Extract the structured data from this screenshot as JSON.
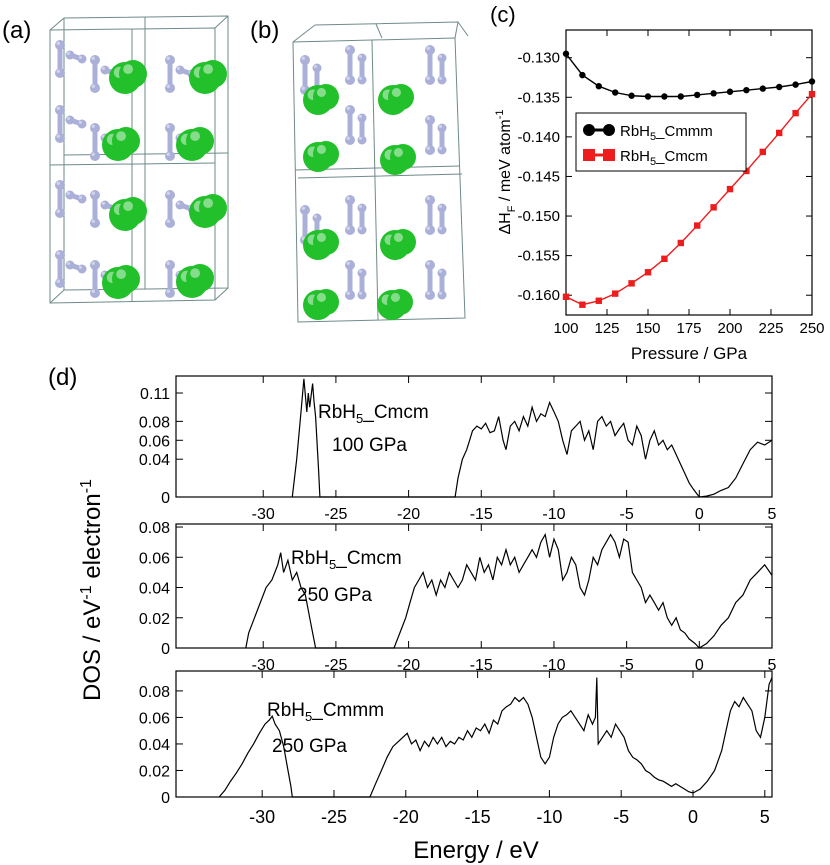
{
  "panel_labels": {
    "a": "(a)",
    "b": "(b)",
    "c": "(c)",
    "d": "(d)"
  },
  "colors": {
    "rb": "#22c02a",
    "h": "#aab0d8",
    "cell": "#6f8a8a",
    "black_series": "#000000",
    "red_series": "#ee1c1c"
  },
  "chart_data": [
    {
      "type": "line",
      "panel": "c",
      "xlabel": "Pressure / GPa",
      "ylabel": "ΔH_F / meV atom^-1",
      "ylabel_parts": {
        "delta": "ΔH",
        "sub": "F",
        "unit": " / meV atom",
        "sup": "-1"
      },
      "xlim": [
        100,
        250
      ],
      "ylim": [
        -0.1625,
        -0.1265
      ],
      "xticks": [
        100,
        125,
        150,
        175,
        200,
        225,
        250
      ],
      "yticks": [
        -0.16,
        -0.155,
        -0.15,
        -0.145,
        -0.14,
        -0.135,
        -0.13
      ],
      "ytick_labels": [
        "-0.160",
        "-0.155",
        "-0.150",
        "-0.145",
        "-0.140",
        "-0.135",
        "-0.130"
      ],
      "x": [
        100,
        110,
        120,
        130,
        140,
        150,
        160,
        170,
        180,
        190,
        200,
        210,
        220,
        230,
        240,
        250
      ],
      "legend_location": "upper-left",
      "series": [
        {
          "name": "RbH5_Cmmm",
          "name_parts": [
            "RbH",
            "5",
            "_Cmmm"
          ],
          "marker": "circle",
          "color": "#000000",
          "values": [
            -0.1295,
            -0.1322,
            -0.1336,
            -0.1344,
            -0.1348,
            -0.1349,
            -0.1349,
            -0.1349,
            -0.1347,
            -0.1345,
            -0.1343,
            -0.1341,
            -0.1339,
            -0.1337,
            -0.1334,
            -0.133
          ]
        },
        {
          "name": "RbH5_Cmcm",
          "name_parts": [
            "RbH",
            "5",
            "_Cmcm"
          ],
          "marker": "square",
          "color": "#ee1c1c",
          "values": [
            -0.1602,
            -0.1612,
            -0.1607,
            -0.1598,
            -0.1585,
            -0.1571,
            -0.1554,
            -0.1534,
            -0.1512,
            -0.1489,
            -0.1466,
            -0.1443,
            -0.1419,
            -0.1395,
            -0.137,
            -0.1346
          ]
        }
      ]
    },
    {
      "type": "line",
      "panel": "d-top",
      "title_parts": [
        "RbH",
        "5",
        "_Cmcm"
      ],
      "subtitle": "100 GPa",
      "xlim": [
        -36,
        5
      ],
      "ylim": [
        0,
        0.128
      ],
      "xticks": [
        -30,
        -25,
        -20,
        -15,
        -10,
        -5,
        0,
        5
      ],
      "yticks": [
        0,
        0.04,
        0.06,
        0.08,
        0.11
      ],
      "ytick_labels": [
        "0",
        "0.04",
        "0.06",
        "0.08",
        "0.11"
      ],
      "points": [
        [
          -28.0,
          0
        ],
        [
          -27.7,
          0.04
        ],
        [
          -27.4,
          0.09
        ],
        [
          -27.2,
          0.125
        ],
        [
          -27.0,
          0.09
        ],
        [
          -26.9,
          0.11
        ],
        [
          -26.8,
          0.095
        ],
        [
          -26.6,
          0.12
        ],
        [
          -26.5,
          0.1
        ],
        [
          -26.4,
          0.085
        ],
        [
          -26.2,
          0.03
        ],
        [
          -26.1,
          0
        ],
        [
          -16.8,
          0
        ],
        [
          -16.6,
          0.02
        ],
        [
          -16.3,
          0.04
        ],
        [
          -16.0,
          0.05
        ],
        [
          -15.8,
          0.06
        ],
        [
          -15.6,
          0.07
        ],
        [
          -15.3,
          0.075
        ],
        [
          -15.0,
          0.072
        ],
        [
          -14.7,
          0.078
        ],
        [
          -14.4,
          0.068
        ],
        [
          -14.1,
          0.07
        ],
        [
          -13.8,
          0.085
        ],
        [
          -13.5,
          0.06
        ],
        [
          -13.3,
          0.05
        ],
        [
          -13.0,
          0.075
        ],
        [
          -12.7,
          0.08
        ],
        [
          -12.4,
          0.07
        ],
        [
          -12.1,
          0.085
        ],
        [
          -11.8,
          0.075
        ],
        [
          -11.5,
          0.095
        ],
        [
          -11.2,
          0.08
        ],
        [
          -10.9,
          0.088
        ],
        [
          -10.6,
          0.085
        ],
        [
          -10.3,
          0.1
        ],
        [
          -10.0,
          0.09
        ],
        [
          -9.7,
          0.08
        ],
        [
          -9.4,
          0.06
        ],
        [
          -9.1,
          0.045
        ],
        [
          -8.8,
          0.07
        ],
        [
          -8.5,
          0.075
        ],
        [
          -8.2,
          0.08
        ],
        [
          -7.9,
          0.06
        ],
        [
          -7.6,
          0.07
        ],
        [
          -7.3,
          0.05
        ],
        [
          -7.0,
          0.08
        ],
        [
          -6.7,
          0.085
        ],
        [
          -6.4,
          0.075
        ],
        [
          -6.1,
          0.08
        ],
        [
          -5.8,
          0.065
        ],
        [
          -5.5,
          0.072
        ],
        [
          -5.2,
          0.078
        ],
        [
          -4.9,
          0.06
        ],
        [
          -4.6,
          0.055
        ],
        [
          -4.3,
          0.075
        ],
        [
          -4.0,
          0.065
        ],
        [
          -3.7,
          0.04
        ],
        [
          -3.4,
          0.06
        ],
        [
          -3.1,
          0.07
        ],
        [
          -2.8,
          0.055
        ],
        [
          -2.5,
          0.06
        ],
        [
          -2.2,
          0.05
        ],
        [
          -1.9,
          0.055
        ],
        [
          -1.6,
          0.045
        ],
        [
          -1.3,
          0.035
        ],
        [
          -1.0,
          0.025
        ],
        [
          -0.7,
          0.015
        ],
        [
          -0.4,
          0.008
        ],
        [
          0,
          0
        ],
        [
          0.5,
          0.001
        ],
        [
          1.0,
          0.003
        ],
        [
          1.5,
          0.007
        ],
        [
          2.0,
          0.01
        ],
        [
          2.5,
          0.02
        ],
        [
          3.0,
          0.035
        ],
        [
          3.5,
          0.05
        ],
        [
          4.0,
          0.058
        ],
        [
          4.5,
          0.055
        ],
        [
          5.0,
          0.06
        ]
      ]
    },
    {
      "type": "line",
      "panel": "d-middle",
      "title_parts": [
        "RbH",
        "5",
        "_Cmcm"
      ],
      "subtitle": "250 GPa",
      "xlim": [
        -36,
        5
      ],
      "ylim": [
        0,
        0.082
      ],
      "xticks": [
        -30,
        -25,
        -20,
        -15,
        -10,
        -5,
        0,
        5
      ],
      "yticks": [
        0,
        0.02,
        0.04,
        0.06,
        0.08
      ],
      "ytick_labels": [
        "0",
        "0.02",
        "0.04",
        "0.06",
        "0.08"
      ],
      "points": [
        [
          -31.2,
          0
        ],
        [
          -31.0,
          0.01
        ],
        [
          -30.6,
          0.02
        ],
        [
          -30.2,
          0.03
        ],
        [
          -29.8,
          0.04
        ],
        [
          -29.4,
          0.045
        ],
        [
          -29.0,
          0.055
        ],
        [
          -28.8,
          0.063
        ],
        [
          -28.6,
          0.05
        ],
        [
          -28.3,
          0.058
        ],
        [
          -28.0,
          0.045
        ],
        [
          -27.7,
          0.05
        ],
        [
          -27.4,
          0.04
        ],
        [
          -27.1,
          0.035
        ],
        [
          -26.8,
          0.02
        ],
        [
          -26.5,
          0.005
        ],
        [
          -26.4,
          0
        ],
        [
          -21.0,
          0
        ],
        [
          -20.6,
          0.01
        ],
        [
          -20.2,
          0.02
        ],
        [
          -19.9,
          0.03
        ],
        [
          -19.6,
          0.04
        ],
        [
          -19.3,
          0.045
        ],
        [
          -19.0,
          0.05
        ],
        [
          -18.7,
          0.04
        ],
        [
          -18.4,
          0.045
        ],
        [
          -18.1,
          0.035
        ],
        [
          -17.8,
          0.045
        ],
        [
          -17.5,
          0.04
        ],
        [
          -17.2,
          0.05
        ],
        [
          -16.9,
          0.045
        ],
        [
          -16.6,
          0.04
        ],
        [
          -16.3,
          0.045
        ],
        [
          -16.0,
          0.055
        ],
        [
          -15.7,
          0.05
        ],
        [
          -15.4,
          0.045
        ],
        [
          -15.1,
          0.06
        ],
        [
          -14.8,
          0.05
        ],
        [
          -14.5,
          0.055
        ],
        [
          -14.2,
          0.045
        ],
        [
          -13.9,
          0.06
        ],
        [
          -13.6,
          0.055
        ],
        [
          -13.3,
          0.065
        ],
        [
          -13.0,
          0.055
        ],
        [
          -12.7,
          0.06
        ],
        [
          -12.4,
          0.05
        ],
        [
          -12.1,
          0.055
        ],
        [
          -11.8,
          0.06
        ],
        [
          -11.5,
          0.065
        ],
        [
          -11.2,
          0.06
        ],
        [
          -10.9,
          0.07
        ],
        [
          -10.6,
          0.075
        ],
        [
          -10.3,
          0.06
        ],
        [
          -10.0,
          0.072
        ],
        [
          -9.7,
          0.065
        ],
        [
          -9.4,
          0.045
        ],
        [
          -9.1,
          0.05
        ],
        [
          -8.8,
          0.06
        ],
        [
          -8.5,
          0.055
        ],
        [
          -8.2,
          0.04
        ],
        [
          -7.9,
          0.035
        ],
        [
          -7.6,
          0.045
        ],
        [
          -7.3,
          0.06
        ],
        [
          -7.0,
          0.055
        ],
        [
          -6.7,
          0.065
        ],
        [
          -6.4,
          0.07
        ],
        [
          -6.1,
          0.075
        ],
        [
          -5.8,
          0.07
        ],
        [
          -5.5,
          0.06
        ],
        [
          -5.2,
          0.072
        ],
        [
          -4.9,
          0.07
        ],
        [
          -4.6,
          0.05
        ],
        [
          -4.3,
          0.045
        ],
        [
          -4.0,
          0.04
        ],
        [
          -3.7,
          0.03
        ],
        [
          -3.4,
          0.035
        ],
        [
          -3.1,
          0.03
        ],
        [
          -2.8,
          0.025
        ],
        [
          -2.5,
          0.03
        ],
        [
          -2.2,
          0.02
        ],
        [
          -1.9,
          0.015
        ],
        [
          -1.6,
          0.02
        ],
        [
          -1.3,
          0.012
        ],
        [
          -1.0,
          0.01
        ],
        [
          -0.7,
          0.006
        ],
        [
          -0.3,
          0.003
        ],
        [
          0,
          0
        ],
        [
          0.5,
          0.003
        ],
        [
          1.0,
          0.008
        ],
        [
          1.5,
          0.015
        ],
        [
          2.0,
          0.02
        ],
        [
          2.5,
          0.03
        ],
        [
          3.0,
          0.035
        ],
        [
          3.5,
          0.045
        ],
        [
          4.0,
          0.05
        ],
        [
          4.5,
          0.055
        ],
        [
          5.0,
          0.048
        ]
      ]
    },
    {
      "type": "line",
      "panel": "d-bottom",
      "title_parts": [
        "RbH",
        "5",
        "_Cmmm"
      ],
      "subtitle": "250 GPa",
      "xlabel": "Energy / eV",
      "xlim": [
        -36,
        5.5
      ],
      "ylim": [
        0,
        0.095
      ],
      "xticks": [
        -30,
        -25,
        -20,
        -15,
        -10,
        -5,
        0,
        5
      ],
      "yticks": [
        0,
        0.02,
        0.04,
        0.06,
        0.08
      ],
      "ytick_labels": [
        "0",
        "0.02",
        "0.04",
        "0.06",
        "0.08"
      ],
      "points": [
        [
          -33.0,
          0
        ],
        [
          -32.6,
          0.005
        ],
        [
          -32.2,
          0.012
        ],
        [
          -31.8,
          0.018
        ],
        [
          -31.4,
          0.025
        ],
        [
          -31.0,
          0.033
        ],
        [
          -30.6,
          0.04
        ],
        [
          -30.2,
          0.048
        ],
        [
          -29.8,
          0.055
        ],
        [
          -29.5,
          0.058
        ],
        [
          -29.3,
          0.061
        ],
        [
          -29.1,
          0.055
        ],
        [
          -28.8,
          0.05
        ],
        [
          -28.5,
          0.038
        ],
        [
          -28.2,
          0.02
        ],
        [
          -28.0,
          0.008
        ],
        [
          -27.9,
          0
        ],
        [
          -22.5,
          0
        ],
        [
          -22.1,
          0.01
        ],
        [
          -21.7,
          0.02
        ],
        [
          -21.3,
          0.03
        ],
        [
          -20.9,
          0.038
        ],
        [
          -20.5,
          0.042
        ],
        [
          -20.2,
          0.045
        ],
        [
          -19.9,
          0.048
        ],
        [
          -19.6,
          0.04
        ],
        [
          -19.3,
          0.043
        ],
        [
          -19.0,
          0.035
        ],
        [
          -18.7,
          0.042
        ],
        [
          -18.4,
          0.038
        ],
        [
          -18.1,
          0.045
        ],
        [
          -17.8,
          0.04
        ],
        [
          -17.5,
          0.045
        ],
        [
          -17.2,
          0.038
        ],
        [
          -16.9,
          0.042
        ],
        [
          -16.6,
          0.04
        ],
        [
          -16.3,
          0.045
        ],
        [
          -16.0,
          0.043
        ],
        [
          -15.7,
          0.05
        ],
        [
          -15.4,
          0.045
        ],
        [
          -15.1,
          0.052
        ],
        [
          -14.8,
          0.05
        ],
        [
          -14.5,
          0.055
        ],
        [
          -14.2,
          0.048
        ],
        [
          -13.9,
          0.058
        ],
        [
          -13.6,
          0.055
        ],
        [
          -13.3,
          0.065
        ],
        [
          -13.0,
          0.068
        ],
        [
          -12.7,
          0.07
        ],
        [
          -12.4,
          0.075
        ],
        [
          -12.1,
          0.072
        ],
        [
          -11.8,
          0.075
        ],
        [
          -11.5,
          0.07
        ],
        [
          -11.2,
          0.06
        ],
        [
          -10.9,
          0.045
        ],
        [
          -10.6,
          0.03
        ],
        [
          -10.3,
          0.025
        ],
        [
          -10.0,
          0.03
        ],
        [
          -9.7,
          0.045
        ],
        [
          -9.4,
          0.055
        ],
        [
          -9.1,
          0.06
        ],
        [
          -8.8,
          0.062
        ],
        [
          -8.5,
          0.065
        ],
        [
          -8.2,
          0.06
        ],
        [
          -7.9,
          0.055
        ],
        [
          -7.6,
          0.05
        ],
        [
          -7.3,
          0.062
        ],
        [
          -7.0,
          0.055
        ],
        [
          -6.8,
          0.06
        ],
        [
          -6.7,
          0.09
        ],
        [
          -6.6,
          0.04
        ],
        [
          -6.3,
          0.045
        ],
        [
          -6.0,
          0.05
        ],
        [
          -5.7,
          0.045
        ],
        [
          -5.4,
          0.055
        ],
        [
          -5.1,
          0.05
        ],
        [
          -4.8,
          0.045
        ],
        [
          -4.5,
          0.035
        ],
        [
          -4.2,
          0.03
        ],
        [
          -3.9,
          0.028
        ],
        [
          -3.6,
          0.025
        ],
        [
          -3.3,
          0.02
        ],
        [
          -3.0,
          0.018
        ],
        [
          -2.7,
          0.015
        ],
        [
          -2.4,
          0.013
        ],
        [
          -2.1,
          0.012
        ],
        [
          -1.8,
          0.01
        ],
        [
          -1.5,
          0.008
        ],
        [
          -1.2,
          0.01
        ],
        [
          -0.9,
          0.008
        ],
        [
          -0.6,
          0.006
        ],
        [
          -0.3,
          0.004
        ],
        [
          0,
          0.003
        ],
        [
          0.5,
          0.006
        ],
        [
          1.0,
          0.012
        ],
        [
          1.5,
          0.02
        ],
        [
          2.0,
          0.035
        ],
        [
          2.3,
          0.05
        ],
        [
          2.6,
          0.065
        ],
        [
          2.9,
          0.072
        ],
        [
          3.2,
          0.068
        ],
        [
          3.5,
          0.075
        ],
        [
          3.8,
          0.07
        ],
        [
          4.1,
          0.065
        ],
        [
          4.4,
          0.05
        ],
        [
          4.7,
          0.045
        ],
        [
          5.0,
          0.06
        ],
        [
          5.3,
          0.085
        ],
        [
          5.5,
          0.09
        ]
      ]
    }
  ],
  "dos_ylabel_parts": {
    "main": "DOS / eV",
    "sup": "-1",
    "rest": " electron",
    "sup2": "-1"
  }
}
